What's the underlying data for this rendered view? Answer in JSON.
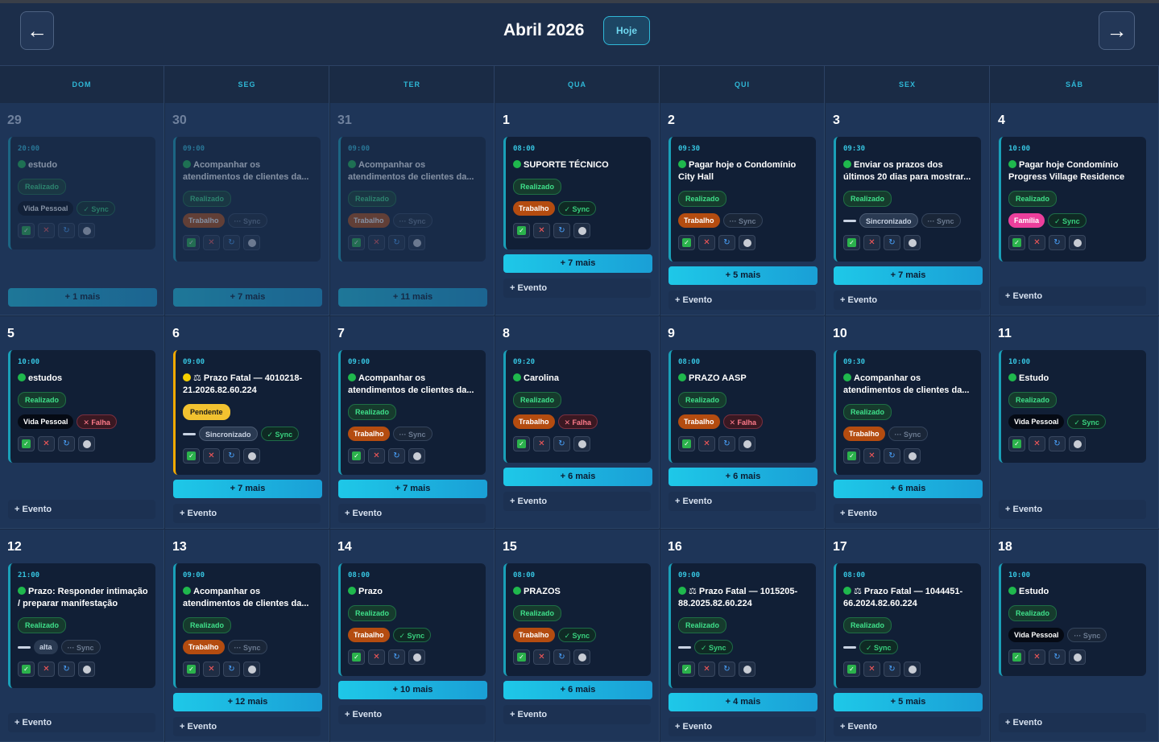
{
  "header": {
    "month_title": "Abril 2026",
    "today_label": "Hoje",
    "prev_icon": "arrow-left-icon",
    "next_icon": "arrow-right-icon"
  },
  "weekdays": [
    "DOM",
    "SEG",
    "TER",
    "QUA",
    "QUI",
    "SEX",
    "SÁB"
  ],
  "colors": {
    "accent": "#2fb7d6",
    "realizado": "#3fe08a",
    "trabalho": "#b44c10",
    "familia": "#ec3f9c",
    "pendente": "#f2c230",
    "falha": "#ff7b8b"
  },
  "weeks": [
    [
      {
        "day": "29",
        "dim": true,
        "event": {
          "time": "20:00",
          "title": [
            "estudo"
          ],
          "status": "Realizado",
          "chips": [
            {
              "t": "Vida Pessoal",
              "k": "vida"
            },
            {
              "t": "✓ Sync",
              "k": "sync-ok"
            }
          ]
        },
        "more": "+ 1 mais",
        "add": ""
      },
      {
        "day": "30",
        "dim": true,
        "event": {
          "time": "09:00",
          "title": [
            "Acompanhar os",
            "atendimentos de clientes da..."
          ],
          "status": "Realizado",
          "chips": [
            {
              "t": "Trabalho",
              "k": "trabalho"
            },
            {
              "t": "··· Sync",
              "k": "sync-off"
            }
          ]
        },
        "more": "+ 7 mais",
        "add": ""
      },
      {
        "day": "31",
        "dim": true,
        "event": {
          "time": "09:00",
          "title": [
            "Acompanhar os",
            "atendimentos de clientes da..."
          ],
          "status": "Realizado",
          "chips": [
            {
              "t": "Trabalho",
              "k": "trabalho"
            },
            {
              "t": "··· Sync",
              "k": "sync-off"
            }
          ]
        },
        "more": "+ 11 mais",
        "add": ""
      },
      {
        "day": "1",
        "event": {
          "time": "08:00",
          "title": [
            "SUPORTE TÉCNICO"
          ],
          "status": "Realizado",
          "chips": [
            {
              "t": "Trabalho",
              "k": "trabalho"
            },
            {
              "t": "✓ Sync",
              "k": "sync-ok"
            }
          ]
        },
        "more": "+ 7 mais",
        "add": "+ Evento"
      },
      {
        "day": "2",
        "event": {
          "time": "09:30",
          "title": [
            "Pagar hoje o Condomínio",
            "City Hall"
          ],
          "status": "Realizado",
          "chips": [
            {
              "t": "Trabalho",
              "k": "trabalho"
            },
            {
              "t": "··· Sync",
              "k": "sync-off"
            }
          ]
        },
        "more": "+ 5 mais",
        "add": "+ Evento"
      },
      {
        "day": "3",
        "event": {
          "time": "09:30",
          "title": [
            "Enviar os prazos dos",
            "últimos 20 dias para mostrar..."
          ],
          "status": "Realizado",
          "chips": [
            {
              "t": "",
              "k": "dash"
            },
            {
              "t": "Sincronizado",
              "k": "sinc"
            },
            {
              "t": "··· Sync",
              "k": "sync-off"
            }
          ]
        },
        "more": "+ 7 mais",
        "add": "+ Evento"
      },
      {
        "day": "4",
        "event": {
          "time": "10:00",
          "title": [
            "Pagar hoje Condomínio",
            "Progress Village Residence"
          ],
          "status": "Realizado",
          "chips": [
            {
              "t": "Família",
              "k": "familia"
            },
            {
              "t": "✓ Sync",
              "k": "sync-ok"
            }
          ]
        },
        "more": "",
        "add": "+ Evento"
      }
    ],
    [
      {
        "day": "5",
        "event": {
          "time": "10:00",
          "title": [
            "estudos"
          ],
          "status": "Realizado",
          "chips": [
            {
              "t": "Vida Pessoal",
              "k": "vida"
            },
            {
              "t": "✕ Falha",
              "k": "falha"
            }
          ]
        },
        "more": "",
        "add": "+ Evento"
      },
      {
        "day": "6",
        "event": {
          "time": "09:00",
          "title": [
            "⚖ Prazo Fatal — 4010218-",
            "21.2026.82.60.224"
          ],
          "dot": "yellow",
          "warn": true,
          "status": "Pendente",
          "chips": [
            {
              "t": "",
              "k": "dash"
            },
            {
              "t": "Sincronizado",
              "k": "sinc"
            },
            {
              "t": "✓ Sync",
              "k": "sync-ok"
            }
          ]
        },
        "more": "+ 7 mais",
        "add": "+ Evento"
      },
      {
        "day": "7",
        "event": {
          "time": "09:00",
          "title": [
            "Acompanhar os",
            "atendimentos de clientes da..."
          ],
          "status": "Realizado",
          "chips": [
            {
              "t": "Trabalho",
              "k": "trabalho"
            },
            {
              "t": "··· Sync",
              "k": "sync-off"
            }
          ]
        },
        "more": "+ 7 mais",
        "add": "+ Evento"
      },
      {
        "day": "8",
        "event": {
          "time": "09:20",
          "title": [
            "Carolina"
          ],
          "status": "Realizado",
          "chips": [
            {
              "t": "Trabalho",
              "k": "trabalho"
            },
            {
              "t": "✕ Falha",
              "k": "falha"
            }
          ]
        },
        "more": "+ 6 mais",
        "add": "+ Evento"
      },
      {
        "day": "9",
        "event": {
          "time": "08:00",
          "title": [
            "PRAZO AASP"
          ],
          "status": "Realizado",
          "chips": [
            {
              "t": "Trabalho",
              "k": "trabalho"
            },
            {
              "t": "✕ Falha",
              "k": "falha"
            }
          ]
        },
        "more": "+ 6 mais",
        "add": "+ Evento"
      },
      {
        "day": "10",
        "event": {
          "time": "09:30",
          "title": [
            "Acompanhar os",
            "atendimentos de clientes da..."
          ],
          "status": "Realizado",
          "chips": [
            {
              "t": "Trabalho",
              "k": "trabalho"
            },
            {
              "t": "··· Sync",
              "k": "sync-off"
            }
          ]
        },
        "more": "+ 6 mais",
        "add": "+ Evento"
      },
      {
        "day": "11",
        "event": {
          "time": "10:00",
          "title": [
            "Estudo"
          ],
          "status": "Realizado",
          "chips": [
            {
              "t": "Vida Pessoal",
              "k": "vida"
            },
            {
              "t": "✓ Sync",
              "k": "sync-ok"
            }
          ]
        },
        "more": "",
        "add": "+ Evento"
      }
    ],
    [
      {
        "day": "12",
        "event": {
          "time": "21:00",
          "title": [
            "Prazo: Responder intimação",
            "/ preparar manifestação"
          ],
          "status": "Realizado",
          "chips": [
            {
              "t": "",
              "k": "dash"
            },
            {
              "t": "alta",
              "k": "alta"
            },
            {
              "t": "··· Sync",
              "k": "sync-off"
            }
          ]
        },
        "more": "",
        "add": "+ Evento"
      },
      {
        "day": "13",
        "event": {
          "time": "09:00",
          "title": [
            "Acompanhar os",
            "atendimentos de clientes da..."
          ],
          "status": "Realizado",
          "chips": [
            {
              "t": "Trabalho",
              "k": "trabalho"
            },
            {
              "t": "··· Sync",
              "k": "sync-off"
            }
          ]
        },
        "more": "+ 12 mais",
        "add": "+ Evento"
      },
      {
        "day": "14",
        "event": {
          "time": "08:00",
          "title": [
            "Prazo"
          ],
          "status": "Realizado",
          "chips": [
            {
              "t": "Trabalho",
              "k": "trabalho"
            },
            {
              "t": "✓ Sync",
              "k": "sync-ok"
            }
          ]
        },
        "more": "+ 10 mais",
        "add": "+ Evento"
      },
      {
        "day": "15",
        "event": {
          "time": "08:00",
          "title": [
            "PRAZOS"
          ],
          "status": "Realizado",
          "chips": [
            {
              "t": "Trabalho",
              "k": "trabalho"
            },
            {
              "t": "✓ Sync",
              "k": "sync-ok"
            }
          ]
        },
        "more": "+ 6 mais",
        "add": "+ Evento"
      },
      {
        "day": "16",
        "event": {
          "time": "09:00",
          "title": [
            "⚖ Prazo Fatal — 1015205-",
            "88.2025.82.60.224"
          ],
          "status": "Realizado",
          "chips": [
            {
              "t": "",
              "k": "dash"
            },
            {
              "t": "✓ Sync",
              "k": "sync-ok"
            }
          ]
        },
        "more": "+ 4 mais",
        "add": "+ Evento"
      },
      {
        "day": "17",
        "event": {
          "time": "08:00",
          "title": [
            "⚖ Prazo Fatal — 1044451-",
            "66.2024.82.60.224"
          ],
          "status": "Realizado",
          "chips": [
            {
              "t": "",
              "k": "dash"
            },
            {
              "t": "✓ Sync",
              "k": "sync-ok"
            }
          ]
        },
        "more": "+ 5 mais",
        "add": "+ Evento"
      },
      {
        "day": "18",
        "event": {
          "time": "10:00",
          "title": [
            "Estudo"
          ],
          "status": "Realizado",
          "chips": [
            {
              "t": "Vida Pessoal",
              "k": "vida"
            },
            {
              "t": "··· Sync",
              "k": "sync-off"
            }
          ]
        },
        "more": "",
        "add": "+ Evento"
      }
    ]
  ]
}
